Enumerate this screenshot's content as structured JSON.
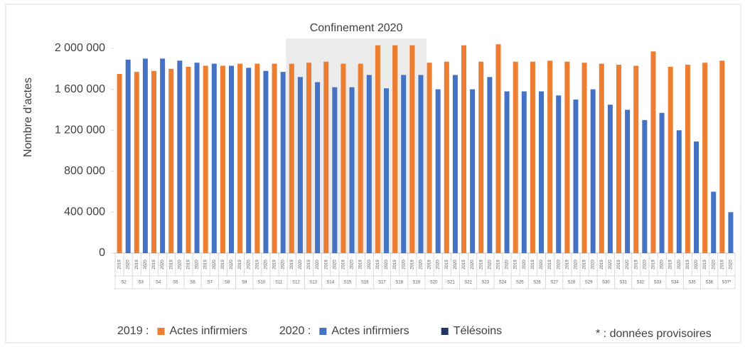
{
  "chart_data": {
    "type": "bar",
    "y_label": "Nombre d’actes",
    "categories": [
      "S2",
      "S3",
      "S4",
      "S5",
      "S6",
      "S7",
      "S8",
      "S9",
      "S10",
      "S11",
      "S12",
      "S13",
      "S14",
      "S15",
      "S16",
      "S17",
      "S18",
      "S19",
      "S20",
      "S21",
      "S22",
      "S23",
      "S24",
      "S25",
      "S26",
      "S27",
      "S28",
      "S29",
      "S30",
      "S31",
      "S32",
      "S33",
      "S34",
      "S35",
      "S36",
      "S37*"
    ],
    "subcategories": [
      "2019",
      "2020"
    ],
    "series": [
      {
        "name": "Actes infirmiers",
        "legend_prefix": "2019 :",
        "color": "#ed7d31",
        "values": [
          1750000,
          1770000,
          1780000,
          1800000,
          1820000,
          1830000,
          1830000,
          1850000,
          1850000,
          1850000,
          1850000,
          1860000,
          1870000,
          1850000,
          1850000,
          2030000,
          2030000,
          2030000,
          1860000,
          1870000,
          2030000,
          1870000,
          2040000,
          1870000,
          1870000,
          1880000,
          1870000,
          1860000,
          1850000,
          1840000,
          1830000,
          1970000,
          1820000,
          1840000,
          1860000,
          1880000
        ]
      },
      {
        "name": "Actes infirmiers",
        "legend_prefix": "2020 :",
        "color": "#4472c4",
        "values": [
          1890000,
          1900000,
          1900000,
          1880000,
          1860000,
          1850000,
          1830000,
          1810000,
          1780000,
          1770000,
          1720000,
          1670000,
          1620000,
          1620000,
          1740000,
          1610000,
          1740000,
          1740000,
          1600000,
          1740000,
          1600000,
          1720000,
          1580000,
          1580000,
          1580000,
          1540000,
          1500000,
          1600000,
          1450000,
          1400000,
          1300000,
          1370000,
          1200000,
          1090000,
          600000,
          400000
        ]
      }
    ],
    "legend_only_series": [
      {
        "name": "Télésoins",
        "color": "#203864"
      }
    ],
    "shaded_period": {
      "label": "Confinement 2020",
      "start_category": "S12",
      "end_category": "S19",
      "color": "#ebebeb"
    },
    "ylim": [
      0,
      2000000
    ],
    "yticks": [
      0,
      {
        "value": 400000,
        "label": "400 000"
      },
      {
        "value": 800000,
        "label": "800 000"
      },
      {
        "value": 1200000,
        "label": "1 200 000"
      },
      {
        "value": 1600000,
        "label": "1 600 000"
      },
      {
        "value": 2000000,
        "label": "2 000 000"
      }
    ],
    "grid": false,
    "footnote": "* : données provisoires"
  }
}
